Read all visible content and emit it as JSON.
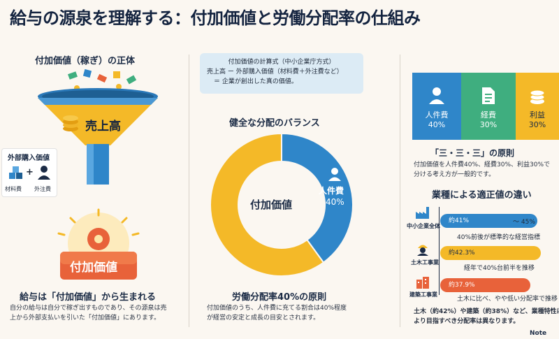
{
  "title": "給与の源泉を理解する：付加価値と労働分配率の仕組み",
  "left": {
    "heading": "付加価値（稼ぎ）の正体",
    "funnel_label": "売上高",
    "ext_title": "外部購入価値",
    "ext_item1": "材料費",
    "ext_item2": "外注費",
    "plus": "+",
    "badge": "付加価値",
    "bottom_heading": "給与は「付加価値」から生まれる",
    "bottom_text1": "自分の給与は自分で稼ぎ出すものであり、その源泉は売",
    "bottom_text2": "上から外部支払いを引いた「付加価値」にあります。"
  },
  "center": {
    "formula_title": "付加価値の計算式（中小企業庁方式）",
    "formula_line1": "売上高 ー 外部購入価値（材料費＋外注費など）",
    "formula_line2": "＝ 企業が創出した真の価値。",
    "chart_heading": "健全な分配のバランス",
    "donut_center": "付加価値",
    "slice_label": "人件費",
    "slice_value": "40%",
    "bottom_heading": "労働分配率40%の原則",
    "bottom_text1": "付加価値のうち、人件費に充てる割合は40%程度",
    "bottom_text2": "が経営の安定と成長の目安とされます。"
  },
  "chart_data": {
    "type": "pie",
    "categories": [
      "人件費",
      ""
    ],
    "values": [
      40,
      60
    ],
    "colors": [
      "#2f86c9",
      "#f4b928"
    ]
  },
  "right": {
    "cards": [
      {
        "label": "人件費",
        "value": "40%",
        "color": "#2f86c9",
        "icon": "person-icon"
      },
      {
        "label": "経費",
        "value": "30%",
        "color": "#3fae7f",
        "icon": "document-icon"
      },
      {
        "label": "利益",
        "value": "30%",
        "color": "#f4b928",
        "icon": "coins-icon"
      }
    ],
    "rule_heading": "「三・三・三」の原則",
    "rule_text1": "付加価値を人件費40%、経費30%、利益30%で",
    "rule_text2": "分ける考え方が一般的です。",
    "industry_heading": "業種による適正値の違い",
    "industries": [
      {
        "name": "中小企業全体",
        "value_label": "約41%",
        "extra": "〜 45%",
        "note": "40%前後が標準的な経営指標",
        "value": 41,
        "color": "#2f86c9"
      },
      {
        "name": "土木工事業",
        "value_label": "約42.3%",
        "extra": "",
        "note": "経年で40%台前半を推移",
        "value": 42.3,
        "color": "#f4b928"
      },
      {
        "name": "建築工事業",
        "value_label": "約37.9%",
        "extra": "",
        "note": "土木に比べ、やや低い分配率で推移",
        "value": 37.9,
        "color": "#e8623a"
      }
    ],
    "bottom_text1": "土木（約42%）や建築（約38%）など、業種特性に",
    "bottom_text2": "より目指すべき分配率は異なります。"
  },
  "watermark": "Note"
}
